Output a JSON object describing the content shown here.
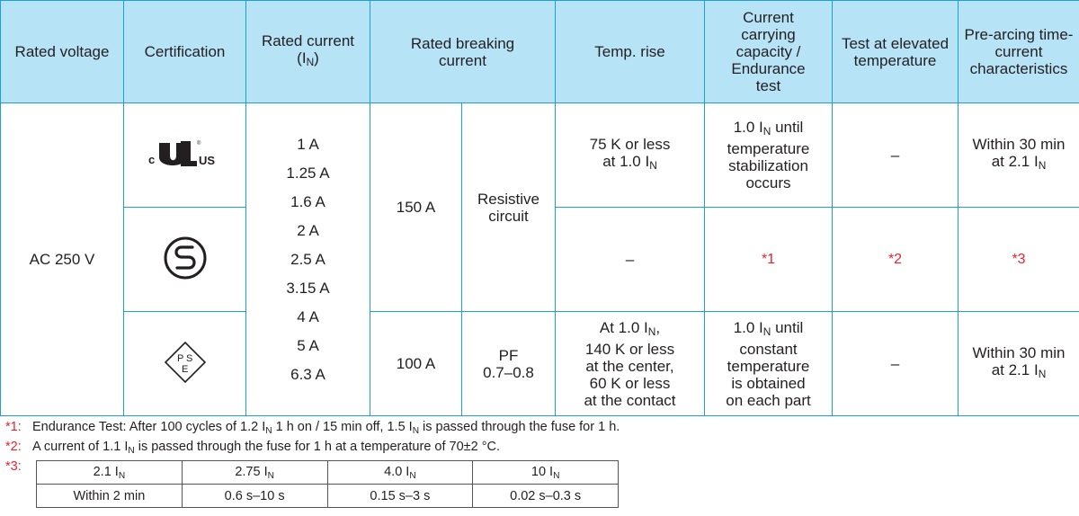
{
  "header": {
    "rated_voltage": "Rated voltage",
    "certification": "Certification",
    "rated_current": "Rated current",
    "rated_current_sym": "(I",
    "rated_current_sub": "N",
    "rated_current_close": ")",
    "rated_breaking": "Rated breaking current",
    "temp_rise": "Temp. rise",
    "current_carrying": "Current carrying capacity / Endurance test",
    "test_elevated": "Test at elevated temperature",
    "pre_arcing": "Pre-arcing time-current characteristics"
  },
  "body": {
    "voltage": "AC 250 V",
    "currents": [
      "1 A",
      "1.25 A",
      "1.6 A",
      "2 A",
      "2.5 A",
      "3.15 A",
      "4 A",
      "5 A",
      "6.3 A"
    ],
    "icons": [
      "ul-cul-mark-icon",
      "s-mark-icon",
      "pse-mark-icon"
    ],
    "row12": {
      "breaking": "150 A",
      "circuit": "Resistive circuit"
    },
    "row1": {
      "temp_rise_a": "75 K or less",
      "temp_rise_b": "at 1.0 I",
      "temp_rise_sub": "N",
      "carrying_a": "1.0 I",
      "carrying_sub": "N",
      "carrying_b": " until",
      "carrying_c": "temperature",
      "carrying_d": "stabilization",
      "carrying_e": "occurs",
      "elevated": "–",
      "pre_a": "Within 30 min",
      "pre_b": "at 2.1 I",
      "pre_sub": "N"
    },
    "row2": {
      "temp_rise": "–",
      "carrying": "*1",
      "elevated": "*2",
      "pre": "*3"
    },
    "row3": {
      "breaking": "100 A",
      "circuit_a": "PF",
      "circuit_b": "0.7–0.8",
      "temp_a": "At 1.0 I",
      "temp_sub": "N",
      "temp_a2": ",",
      "temp_b": "140 K or less",
      "temp_c": "at the center,",
      "temp_d": "60 K or less",
      "temp_e": "at the contact",
      "carrying_a": "1.0 I",
      "carrying_sub": "N",
      "carrying_b": " until",
      "carrying_c": "constant",
      "carrying_d": "temperature",
      "carrying_e": "is obtained",
      "carrying_f": "on each part",
      "elevated": "–",
      "pre_a": "Within 30 min",
      "pre_b": "at 2.1 I",
      "pre_sub": "N"
    }
  },
  "notes": [
    {
      "mark": "*1:",
      "pre": "Endurance Test: After 100 cycles of 1.2 I",
      "sub1": "N",
      "mid": " 1 h on / 15 min off, 1.5 I",
      "sub2": "N",
      "post": " is passed through the fuse for 1 h."
    },
    {
      "mark": "*2:",
      "pre": "A current of 1.1 I",
      "sub1": "N",
      "post": " is passed through the fuse for 1 h at a temperature of 70±2 °C."
    },
    {
      "mark": "*3:"
    }
  ],
  "sub_table": {
    "headers": [
      {
        "v": "2.1 I",
        "s": "N"
      },
      {
        "v": "2.75 I",
        "s": "N"
      },
      {
        "v": "4.0 I",
        "s": "N"
      },
      {
        "v": "10 I",
        "s": "N"
      }
    ],
    "values": [
      "Within 2 min",
      "0.6 s–10 s",
      "0.15 s–3 s",
      "0.02 s–0.3 s"
    ]
  },
  "colors": {
    "header_bg": "#b7e3f7",
    "border": "#1ea0d6",
    "note_mark": "#e8222f"
  }
}
